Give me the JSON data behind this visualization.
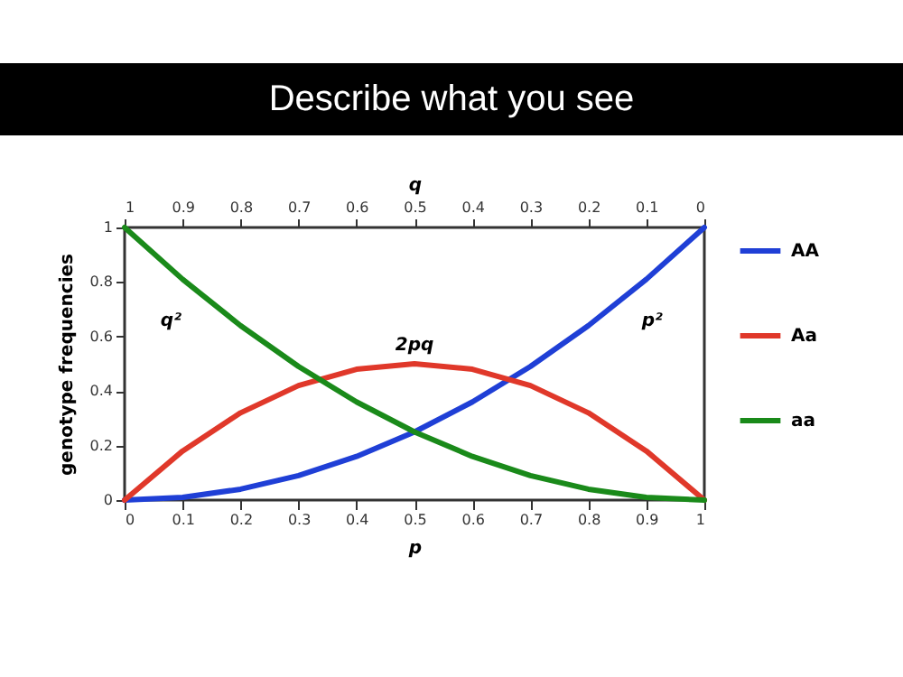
{
  "chart_data": {
    "type": "line",
    "title": "Describe what you see",
    "xlabel": "p",
    "ylabel": "genotype frequencies",
    "x2label": "q",
    "x": [
      0,
      0.1,
      0.2,
      0.3,
      0.4,
      0.5,
      0.6,
      0.7,
      0.8,
      0.9,
      1
    ],
    "series": [
      {
        "name": "AA",
        "color": "#1f3fd6",
        "values": [
          0,
          0.01,
          0.04,
          0.09,
          0.16,
          0.25,
          0.36,
          0.49,
          0.64,
          0.81,
          1
        ]
      },
      {
        "name": "Aa",
        "color": "#e0382a",
        "values": [
          0,
          0.18,
          0.32,
          0.42,
          0.48,
          0.5,
          0.48,
          0.42,
          0.32,
          0.18,
          0
        ]
      },
      {
        "name": "aa",
        "color": "#1a8a1a",
        "values": [
          1,
          0.81,
          0.64,
          0.49,
          0.36,
          0.25,
          0.16,
          0.09,
          0.04,
          0.01,
          0
        ]
      }
    ],
    "xlim": [
      0,
      1
    ],
    "xticks": [
      0,
      0.1,
      0.2,
      0.3,
      0.4,
      0.5,
      0.6,
      0.7,
      0.8,
      0.9,
      1
    ],
    "x2lim": [
      1,
      0
    ],
    "x2ticks": [
      1,
      0.9,
      0.8,
      0.7,
      0.6,
      0.5,
      0.4,
      0.3,
      0.2,
      0.1,
      0
    ],
    "ylim": [
      0,
      1
    ],
    "yticks": [
      0,
      0.2,
      0.4,
      0.6,
      0.8,
      1
    ],
    "annotations": [
      "q²",
      "2pq",
      "p²"
    ],
    "legend": "right",
    "grid": false,
    "line_style": "solid",
    "marker": "none"
  }
}
